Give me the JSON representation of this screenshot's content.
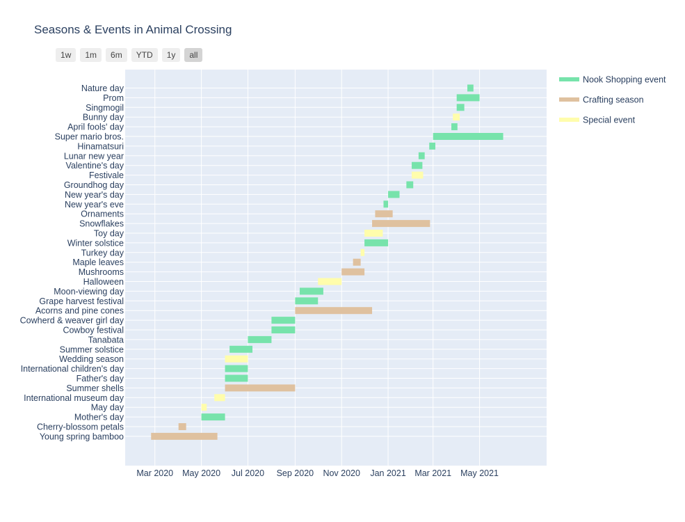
{
  "title": "Seasons & Events in Animal Crossing",
  "range_selector": {
    "buttons": [
      "1w",
      "1m",
      "6m",
      "YTD",
      "1y",
      "all"
    ],
    "active": "all"
  },
  "colors": {
    "Nook Shopping event": "#77e3ab",
    "Crafting season": "#dfc19f",
    "Special event": "#fffdac",
    "plot_bg": "#e5ecf6",
    "grid": "#ffffff",
    "text": "#2a3f5f"
  },
  "chart_data": {
    "type": "bar",
    "orientation": "horizontal (timeline)",
    "title": "Seasons & Events in Animal Crossing",
    "xlabel": "",
    "ylabel": "",
    "x_range": [
      "2020-01-22",
      "2021-07-28"
    ],
    "x_ticks": [
      {
        "date": "2020-03-01",
        "label": "Mar 2020"
      },
      {
        "date": "2020-05-01",
        "label": "May 2020"
      },
      {
        "date": "2020-07-01",
        "label": "Jul 2020"
      },
      {
        "date": "2020-09-01",
        "label": "Sep 2020"
      },
      {
        "date": "2020-11-01",
        "label": "Nov 2020"
      },
      {
        "date": "2021-01-01",
        "label": "Jan 2021"
      },
      {
        "date": "2021-03-01",
        "label": "Mar 2021"
      },
      {
        "date": "2021-05-01",
        "label": "May 2021"
      }
    ],
    "grid": true,
    "legend_position": "top-right",
    "legend": [
      "Nook Shopping event",
      "Crafting season",
      "Special event"
    ],
    "events": [
      {
        "name": "Young spring bamboo",
        "type": "Crafting season",
        "start": "2020-02-25",
        "end": "2020-05-21"
      },
      {
        "name": "Cherry-blossom petals",
        "type": "Crafting season",
        "start": "2020-04-01",
        "end": "2020-04-10"
      },
      {
        "name": "Mother's day",
        "type": "Nook Shopping event",
        "start": "2020-05-01",
        "end": "2020-05-31"
      },
      {
        "name": "May day",
        "type": "Special event",
        "start": "2020-05-01",
        "end": "2020-05-07"
      },
      {
        "name": "International museum day",
        "type": "Special event",
        "start": "2020-05-18",
        "end": "2020-05-31"
      },
      {
        "name": "Summer shells",
        "type": "Crafting season",
        "start": "2020-06-01",
        "end": "2020-08-31"
      },
      {
        "name": "Father's day",
        "type": "Nook Shopping event",
        "start": "2020-06-01",
        "end": "2020-06-30"
      },
      {
        "name": "International children's day",
        "type": "Nook Shopping event",
        "start": "2020-06-01",
        "end": "2020-06-30"
      },
      {
        "name": "Wedding season",
        "type": "Special event",
        "start": "2020-06-01",
        "end": "2020-06-30"
      },
      {
        "name": "Summer solstice",
        "type": "Nook Shopping event",
        "start": "2020-06-07",
        "end": "2020-07-06"
      },
      {
        "name": "Tanabata",
        "type": "Nook Shopping event",
        "start": "2020-07-01",
        "end": "2020-07-31"
      },
      {
        "name": "Cowboy festival",
        "type": "Nook Shopping event",
        "start": "2020-08-01",
        "end": "2020-08-31"
      },
      {
        "name": "Cowherd & weaver girl day",
        "type": "Nook Shopping event",
        "start": "2020-08-01",
        "end": "2020-08-31"
      },
      {
        "name": "Acorns and pine cones",
        "type": "Crafting season",
        "start": "2020-09-01",
        "end": "2020-12-10"
      },
      {
        "name": "Grape harvest festival",
        "type": "Nook Shopping event",
        "start": "2020-09-01",
        "end": "2020-09-30"
      },
      {
        "name": "Moon-viewing day",
        "type": "Nook Shopping event",
        "start": "2020-09-07",
        "end": "2020-10-07"
      },
      {
        "name": "Halloween",
        "type": "Special event",
        "start": "2020-10-01",
        "end": "2020-10-31"
      },
      {
        "name": "Mushrooms",
        "type": "Crafting season",
        "start": "2020-11-01",
        "end": "2020-11-30"
      },
      {
        "name": "Maple leaves",
        "type": "Crafting season",
        "start": "2020-11-16",
        "end": "2020-11-25"
      },
      {
        "name": "Turkey day",
        "type": "Special event",
        "start": "2020-11-26",
        "end": "2020-11-30"
      },
      {
        "name": "Winter solstice",
        "type": "Nook Shopping event",
        "start": "2020-12-01",
        "end": "2020-12-31"
      },
      {
        "name": "Toy day",
        "type": "Special event",
        "start": "2020-12-01",
        "end": "2020-12-24"
      },
      {
        "name": "Snowflakes",
        "type": "Crafting season",
        "start": "2020-12-11",
        "end": "2021-02-24"
      },
      {
        "name": "Ornaments",
        "type": "Crafting season",
        "start": "2020-12-15",
        "end": "2021-01-06"
      },
      {
        "name": "New year's eve",
        "type": "Nook Shopping event",
        "start": "2020-12-26",
        "end": "2020-12-31"
      },
      {
        "name": "New year's day",
        "type": "Nook Shopping event",
        "start": "2021-01-01",
        "end": "2021-01-15"
      },
      {
        "name": "Groundhog day",
        "type": "Nook Shopping event",
        "start": "2021-01-25",
        "end": "2021-02-02"
      },
      {
        "name": "Festivale",
        "type": "Special event",
        "start": "2021-02-01",
        "end": "2021-02-15"
      },
      {
        "name": "Valentine's day",
        "type": "Nook Shopping event",
        "start": "2021-02-01",
        "end": "2021-02-14"
      },
      {
        "name": "Lunar new year",
        "type": "Nook Shopping event",
        "start": "2021-02-10",
        "end": "2021-02-17"
      },
      {
        "name": "Hinamatsuri",
        "type": "Nook Shopping event",
        "start": "2021-02-24",
        "end": "2021-03-03"
      },
      {
        "name": "Super mario bros.",
        "type": "Nook Shopping event",
        "start": "2021-03-01",
        "end": "2021-05-31"
      },
      {
        "name": "April fools' day",
        "type": "Nook Shopping event",
        "start": "2021-03-25",
        "end": "2021-04-01"
      },
      {
        "name": "Bunny day",
        "type": "Special event",
        "start": "2021-03-27",
        "end": "2021-04-04"
      },
      {
        "name": "Singmogil",
        "type": "Nook Shopping event",
        "start": "2021-04-01",
        "end": "2021-04-10"
      },
      {
        "name": "Prom",
        "type": "Nook Shopping event",
        "start": "2021-04-01",
        "end": "2021-04-30"
      },
      {
        "name": "Nature day",
        "type": "Nook Shopping event",
        "start": "2021-04-15",
        "end": "2021-04-22"
      }
    ]
  }
}
